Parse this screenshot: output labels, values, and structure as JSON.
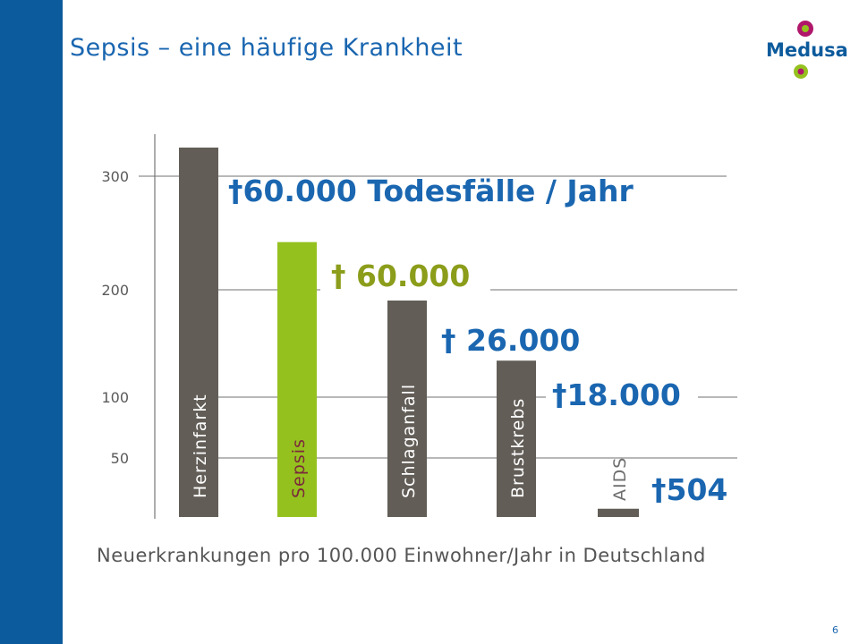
{
  "slide": {
    "title": "Sepsis – eine häufige Krankheit",
    "caption": "Neuerkrankungen pro 100.000 Einwohner/Jahr in Deutschland",
    "page_number": "6",
    "logo_text": "Medusa",
    "colors": {
      "band": "#0c5b9c",
      "title": "#1a66b0",
      "bar": "#625d57",
      "highlight": "#95c11f",
      "death_label": "#1a66b0",
      "sepsis_label": "#8b9d1a",
      "logo_magenta": "#b0176b",
      "logo_green": "#95c11f"
    }
  },
  "chart_data": {
    "type": "bar",
    "categories": [
      "Herzinfarkt",
      "Sepsis",
      "Schlaganfall",
      "Brustkrebs",
      "AIDS"
    ],
    "values": [
      325,
      242,
      190,
      134,
      7
    ],
    "highlight_category": "Sepsis",
    "ylim": [
      0,
      350
    ],
    "yticks": [
      50,
      100,
      200,
      300
    ],
    "grid": true,
    "death_labels": [
      {
        "category": "Herzinfarkt",
        "text": "†60.000 Todesfälle / Jahr"
      },
      {
        "category": "Sepsis",
        "text": "† 60.000"
      },
      {
        "category": "Schlaganfall",
        "text": "† 26.000"
      },
      {
        "category": "Brustkrebs",
        "text": "†18.000"
      },
      {
        "category": "AIDS",
        "text": "†504"
      }
    ]
  }
}
